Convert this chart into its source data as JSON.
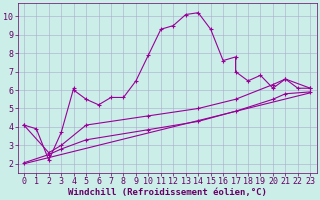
{
  "xlabel": "Windchill (Refroidissement éolien,°C)",
  "background_color": "#cceee8",
  "line_color": "#990099",
  "grid_color": "#aaaacc",
  "spine_color": "#660066",
  "tick_color": "#660066",
  "xlim": [
    -0.5,
    23.5
  ],
  "ylim": [
    1.5,
    10.7
  ],
  "yticks": [
    2,
    3,
    4,
    5,
    6,
    7,
    8,
    9,
    10
  ],
  "xticks": [
    0,
    1,
    2,
    3,
    4,
    5,
    6,
    7,
    8,
    9,
    10,
    11,
    12,
    13,
    14,
    15,
    16,
    17,
    18,
    19,
    20,
    21,
    22,
    23
  ],
  "line1_x": [
    0,
    1,
    2,
    3,
    4,
    4,
    5,
    6,
    7,
    8,
    9,
    10,
    11,
    12,
    13,
    14,
    15,
    16,
    17,
    17,
    18,
    19,
    20,
    21,
    22,
    23
  ],
  "line1_y": [
    4.1,
    3.9,
    2.2,
    3.7,
    6.1,
    6.0,
    5.5,
    5.2,
    5.6,
    5.6,
    6.5,
    7.9,
    9.3,
    9.5,
    10.1,
    10.2,
    9.3,
    7.6,
    7.8,
    7.0,
    6.5,
    6.8,
    6.1,
    6.6,
    6.1,
    6.1
  ],
  "line2_x": [
    0,
    2,
    3,
    5,
    10,
    14,
    17,
    20,
    21,
    23
  ],
  "line2_y": [
    4.1,
    2.6,
    3.0,
    4.1,
    4.6,
    5.0,
    5.5,
    6.3,
    6.6,
    6.1
  ],
  "line3_x": [
    0,
    2,
    3,
    5,
    10,
    14,
    17,
    20,
    21,
    23
  ],
  "line3_y": [
    2.05,
    2.5,
    2.8,
    3.3,
    3.85,
    4.3,
    4.85,
    5.5,
    5.8,
    5.9
  ],
  "line4_x": [
    0,
    23
  ],
  "line4_y": [
    2.0,
    5.85
  ],
  "xlabel_fontsize": 6.5,
  "tick_fontsize": 6.0
}
